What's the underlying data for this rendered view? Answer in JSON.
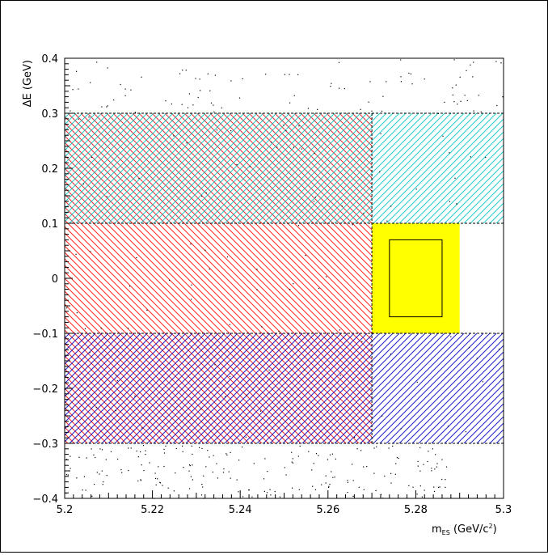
{
  "chart_data": {
    "type": "scatter",
    "title": "",
    "xlabel": "m",
    "xlabel_subscript": "ES",
    "xlabel_unit_prefix": " (GeV/c",
    "xlabel_unit_power": "2",
    "xlabel_unit_suffix": ")",
    "ylabel": "ΔE (GeV)",
    "xlim": [
      5.2,
      5.3
    ],
    "ylim": [
      -0.4,
      0.4
    ],
    "x_ticks": [
      "5.2",
      "5.22",
      "5.24",
      "5.26",
      "5.28",
      "5.3"
    ],
    "y_ticks": [
      "−0.4",
      "−0.3",
      "−0.2",
      "−0.1",
      "0",
      "0.1",
      "0.2",
      "0.3",
      "0.4"
    ],
    "grid": false,
    "regions": [
      {
        "name": "upper-sideband-left",
        "x": [
          5.2,
          5.27
        ],
        "y": [
          0.1,
          0.3
        ],
        "color": "#33cccc",
        "hatch": "cyan-over-red-crosshatch"
      },
      {
        "name": "upper-sideband-right",
        "x": [
          5.27,
          5.3
        ],
        "y": [
          0.1,
          0.3
        ],
        "color": "#33cccc",
        "hatch": "cyan-diagonal"
      },
      {
        "name": "mes-sideband-middle",
        "x": [
          5.2,
          5.27
        ],
        "y": [
          -0.1,
          0.1
        ],
        "color": "#ff2222",
        "hatch": "red-backslash"
      },
      {
        "name": "lower-sideband-left",
        "x": [
          5.2,
          5.27
        ],
        "y": [
          -0.3,
          -0.1
        ],
        "color": "#2222cc",
        "hatch": "blue-over-red-crosshatch"
      },
      {
        "name": "lower-sideband-right",
        "x": [
          5.27,
          5.3
        ],
        "y": [
          -0.3,
          -0.1
        ],
        "color": "#2222cc",
        "hatch": "blue-diagonal"
      },
      {
        "name": "signal-region",
        "x": [
          5.27,
          5.29
        ],
        "y": [
          -0.1,
          0.1
        ],
        "color": "#ffff00",
        "hatch": "solid"
      },
      {
        "name": "signal-box",
        "x": [
          5.274,
          5.286
        ],
        "y": [
          -0.07,
          0.07
        ],
        "color": "#000000",
        "hatch": "outline"
      }
    ],
    "dashed_lines": [
      {
        "orientation": "h",
        "y": 0.3,
        "x": [
          5.2,
          5.3
        ]
      },
      {
        "orientation": "h",
        "y": 0.1,
        "x": [
          5.2,
          5.3
        ]
      },
      {
        "orientation": "h",
        "y": -0.1,
        "x": [
          5.2,
          5.3
        ]
      },
      {
        "orientation": "h",
        "y": -0.3,
        "x": [
          5.2,
          5.3
        ]
      },
      {
        "orientation": "v",
        "x": 5.27,
        "y": [
          -0.3,
          0.3
        ]
      }
    ],
    "scatter_clusters": [
      {
        "x": [
          5.2,
          5.3
        ],
        "y": [
          0.3,
          0.4
        ],
        "n": 90
      },
      {
        "x": [
          5.2,
          5.3
        ],
        "y": [
          0.1,
          0.3
        ],
        "n": 40
      },
      {
        "x": [
          5.2,
          5.27
        ],
        "y": [
          -0.1,
          0.1
        ],
        "n": 30
      },
      {
        "x": [
          5.2,
          5.3
        ],
        "y": [
          -0.3,
          -0.1
        ],
        "n": 30
      },
      {
        "x": [
          5.2,
          5.3
        ],
        "y": [
          -0.4,
          -0.3
        ],
        "n": 200
      }
    ]
  }
}
